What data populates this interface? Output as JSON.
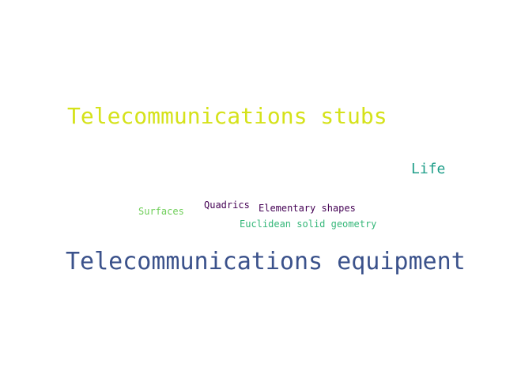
{
  "words": [
    {
      "text": "Telecommunications stubs",
      "color": "#d5e21a"
    },
    {
      "text": "Life",
      "color": "#1f9e89"
    },
    {
      "text": "Quadrics",
      "color": "#440154"
    },
    {
      "text": "Elementary shapes",
      "color": "#440154"
    },
    {
      "text": "Surfaces",
      "color": "#6ece58"
    },
    {
      "text": "Euclidean solid geometry",
      "color": "#35b779"
    },
    {
      "text": "Telecommunications equipment",
      "color": "#3b528b"
    }
  ]
}
